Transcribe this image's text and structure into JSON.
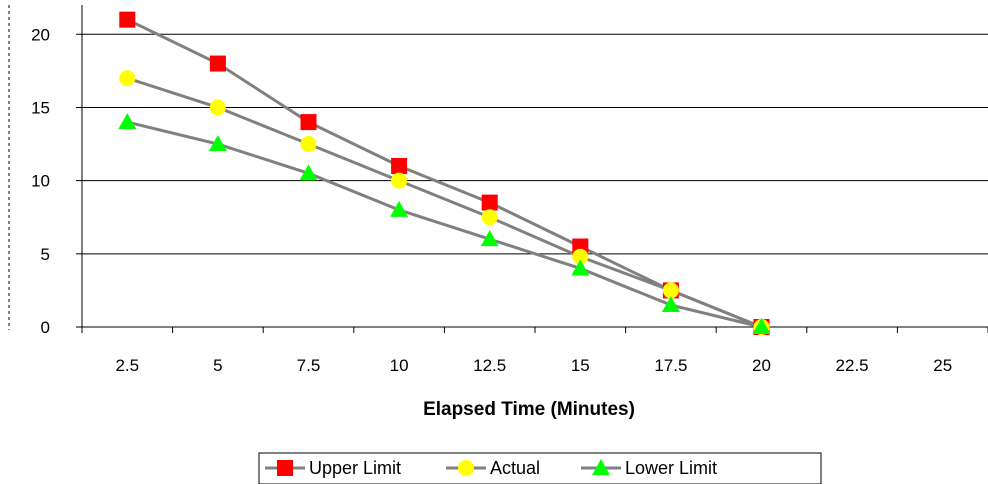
{
  "chart_data": {
    "type": "line",
    "x": [
      2.5,
      5,
      7.5,
      10,
      12.5,
      15,
      17.5,
      20
    ],
    "x_categories": [
      "2.5",
      "5",
      "7.5",
      "10",
      "12.5",
      "15",
      "17.5",
      "20",
      "22.5",
      "25"
    ],
    "xlabel": "Elapsed Time (Minutes)",
    "ylabel": "",
    "ylim": [
      0,
      22
    ],
    "yticks": [
      "0",
      "5",
      "10",
      "15",
      "20"
    ],
    "grid": true,
    "legend_position": "bottom",
    "series": [
      {
        "name": "Upper Limit",
        "values": [
          21,
          18,
          14,
          11,
          8.5,
          5.5,
          2.5,
          0
        ],
        "color": "#ff0000",
        "marker": "square"
      },
      {
        "name": "Actual",
        "values": [
          17,
          15,
          12.5,
          10,
          7.5,
          4.8,
          2.5,
          0
        ],
        "color": "#ffff00",
        "marker": "circle"
      },
      {
        "name": "Lower Limit",
        "values": [
          14,
          12.5,
          10.5,
          8,
          6,
          4,
          1.5,
          0
        ],
        "color": "#00ff00",
        "marker": "triangle"
      }
    ],
    "line_color": "#808080"
  }
}
